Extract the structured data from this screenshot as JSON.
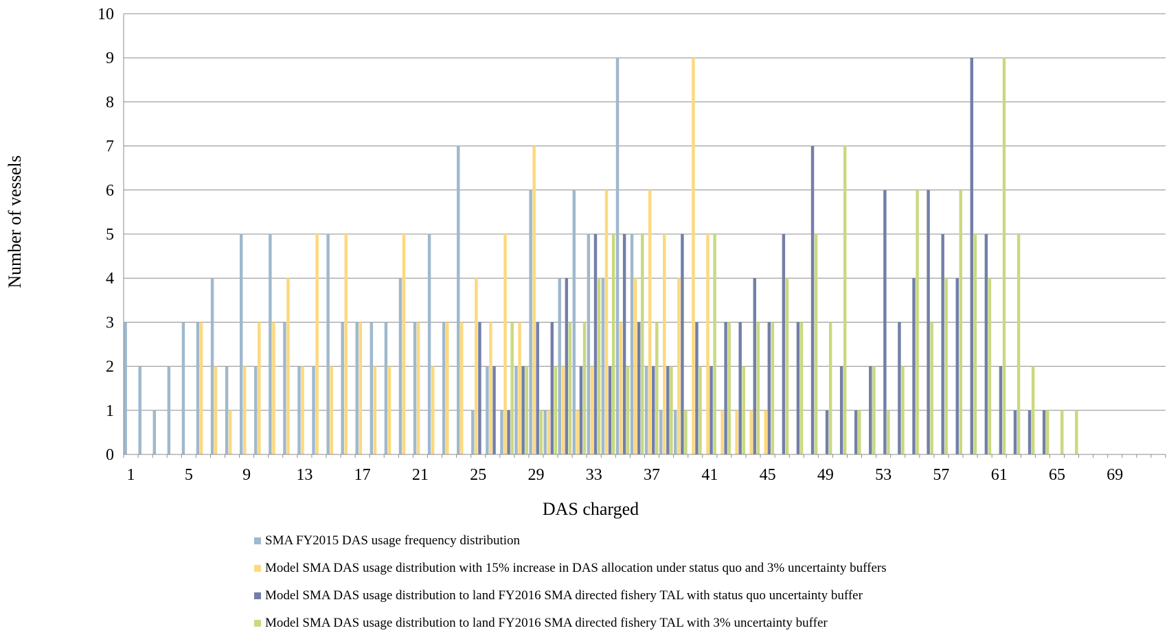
{
  "chart_data": {
    "type": "bar",
    "xlabel": "DAS charged",
    "ylabel": "Number of vessels",
    "ylim": [
      0,
      10
    ],
    "yticks": [
      0,
      1,
      2,
      3,
      4,
      5,
      6,
      7,
      8,
      9,
      10
    ],
    "x_range": [
      1,
      72
    ],
    "xtick_labels": [
      1,
      5,
      9,
      13,
      17,
      21,
      25,
      29,
      33,
      37,
      41,
      45,
      49,
      53,
      57,
      61,
      65,
      69
    ],
    "grid": "horizontal",
    "legend_position": "bottom",
    "series": [
      {
        "name": "SMA FY2015 DAS usage frequency distribution",
        "color": "#9fb8cd",
        "values": [
          3,
          2,
          1,
          2,
          3,
          3,
          4,
          2,
          5,
          2,
          5,
          3,
          2,
          2,
          5,
          3,
          3,
          3,
          3,
          4,
          3,
          5,
          3,
          7,
          1,
          2,
          1,
          2,
          6,
          1,
          4,
          6,
          5,
          4,
          9,
          5,
          2,
          1,
          1,
          0,
          0,
          0,
          0,
          0,
          0,
          0,
          0,
          0,
          0,
          0,
          0,
          0,
          0,
          0,
          0,
          0,
          0,
          0,
          0,
          0,
          0,
          0,
          0,
          0,
          0,
          0,
          0,
          0,
          0,
          0,
          0,
          0
        ]
      },
      {
        "name": "Model SMA DAS usage distribution with 15% increase in DAS allocation under status quo and 3% uncertainty buffers",
        "color": "#fcd97d",
        "values": [
          0,
          0,
          0,
          0,
          0,
          3,
          2,
          1,
          2,
          3,
          3,
          4,
          2,
          5,
          2,
          5,
          3,
          2,
          2,
          5,
          3,
          2,
          3,
          3,
          4,
          3,
          5,
          3,
          7,
          1,
          2,
          1,
          2,
          6,
          3,
          4,
          6,
          5,
          4,
          9,
          5,
          1,
          1,
          1,
          1,
          0,
          0,
          0,
          0,
          0,
          0,
          0,
          0,
          0,
          0,
          0,
          0,
          0,
          0,
          0,
          0,
          0,
          0,
          0,
          0,
          0,
          0,
          0,
          0,
          0,
          0,
          0
        ]
      },
      {
        "name": "Model SMA DAS usage distribution to land FY2016 SMA directed fishery TAL with status quo uncertainty buffer",
        "color": "#737fa8",
        "values": [
          0,
          0,
          0,
          0,
          0,
          0,
          0,
          0,
          0,
          0,
          0,
          0,
          0,
          0,
          0,
          0,
          0,
          0,
          0,
          0,
          0,
          0,
          0,
          0,
          3,
          2,
          1,
          2,
          3,
          3,
          4,
          2,
          5,
          2,
          5,
          3,
          2,
          2,
          5,
          3,
          2,
          3,
          3,
          4,
          3,
          5,
          3,
          7,
          1,
          2,
          1,
          2,
          6,
          3,
          4,
          6,
          5,
          4,
          9,
          5,
          2,
          1,
          1,
          1,
          0,
          0,
          0,
          0,
          0,
          0,
          0,
          0
        ]
      },
      {
        "name": "Model SMA DAS usage distribution to land FY2016 SMA directed fishery TAL with 3% uncertainty buffer",
        "color": "#c9d97f",
        "values": [
          0,
          0,
          0,
          0,
          0,
          0,
          0,
          0,
          0,
          0,
          0,
          0,
          0,
          0,
          0,
          0,
          0,
          0,
          0,
          0,
          0,
          0,
          0,
          0,
          0,
          0,
          3,
          2,
          1,
          2,
          3,
          3,
          4,
          5,
          2,
          5,
          3,
          2,
          1,
          2,
          5,
          3,
          2,
          3,
          3,
          4,
          3,
          5,
          3,
          7,
          1,
          2,
          1,
          2,
          6,
          3,
          4,
          6,
          5,
          4,
          9,
          5,
          2,
          1,
          1,
          1,
          0,
          0,
          0,
          0,
          0,
          0
        ]
      }
    ]
  }
}
